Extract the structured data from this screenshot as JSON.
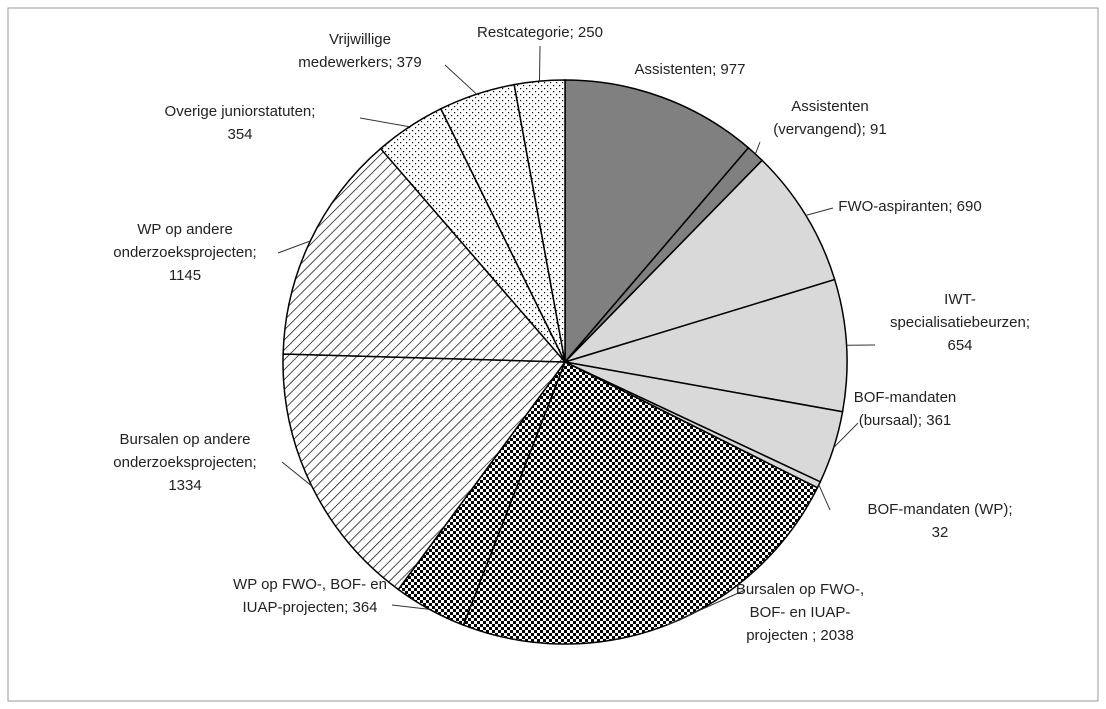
{
  "chart_data": {
    "type": "pie",
    "values": [
      977,
      91,
      690,
      654,
      361,
      32,
      2038,
      364,
      1334,
      1145,
      354,
      379,
      250
    ],
    "value_labels": [
      [
        "Assistenten; 977"
      ],
      [
        "Assistenten",
        "(vervangend); 91"
      ],
      [
        "FWO-aspiranten; 690"
      ],
      [
        "IWT-",
        "specialisatiebeurzen;",
        "654"
      ],
      [
        "BOF-mandaten",
        "(bursaal); 361"
      ],
      [
        "BOF-mandaten (WP);",
        "32"
      ],
      [
        "Bursalen op FWO-,",
        "BOF- en IUAP-",
        "projecten ; 2038"
      ],
      [
        "WP op FWO-, BOF- en",
        "IUAP-projecten; 364"
      ],
      [
        "Bursalen op andere",
        "onderzoeksprojecten;",
        "1334"
      ],
      [
        "WP op andere",
        "onderzoeksprojecten;",
        "1145"
      ],
      [
        "Overige juniorstatuten;",
        "354"
      ],
      [
        "Vrijwillige",
        "medewerkers; 379"
      ],
      [
        "Restcategorie; 250"
      ]
    ],
    "colors": [
      "#808080",
      "#808080",
      "#d9d9d9",
      "#d9d9d9",
      "#d9d9d9",
      "#d9d9d9",
      "#000000",
      "#000000",
      "#000000",
      "#000000",
      "#000000",
      "#000000",
      "#000000"
    ],
    "patterns": [
      "solid",
      "solid",
      "solid",
      "solid",
      "solid",
      "solid",
      "checker",
      "checker",
      "hatch",
      "hatch",
      "dots",
      "dots",
      "dots"
    ]
  }
}
